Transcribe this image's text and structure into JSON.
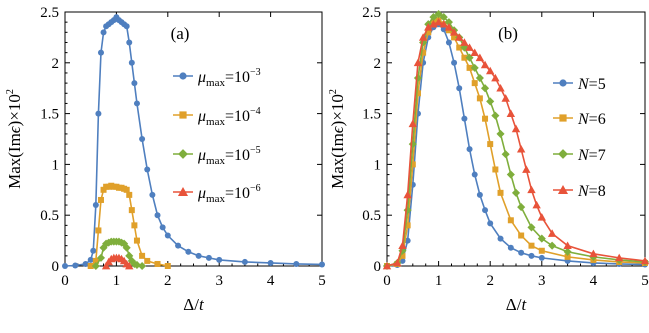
{
  "chart_data": [
    {
      "type": "scatter",
      "panel_label": "(a)",
      "xlabel": "Δ/t",
      "ylabel": "Max(Imϵ)×10²",
      "xlim": [
        0,
        5
      ],
      "ylim": [
        0,
        2.5
      ],
      "xticks": [
        "0",
        "1",
        "2",
        "3",
        "4",
        "5"
      ],
      "yticks": [
        "0",
        "0.5",
        "1",
        "1.5",
        "2",
        "2.5"
      ],
      "legend_position": "right",
      "series": [
        {
          "name": "μmax=10⁻³",
          "label_parts": {
            "base": "μ",
            "sub": "max",
            "mid": "=10",
            "sup": "−3"
          },
          "color": "#4f7fbf",
          "marker": "circle",
          "x": [
            0.0,
            0.2,
            0.4,
            0.5,
            0.55,
            0.6,
            0.65,
            0.7,
            0.75,
            0.8,
            0.85,
            0.9,
            0.95,
            1.0,
            1.05,
            1.1,
            1.15,
            1.2,
            1.25,
            1.3,
            1.35,
            1.4,
            1.5,
            1.6,
            1.7,
            1.8,
            1.9,
            2.0,
            2.2,
            2.4,
            2.6,
            2.8,
            3.0,
            3.5,
            4.0,
            4.5,
            5.0
          ],
          "y": [
            0.0,
            0.005,
            0.02,
            0.06,
            0.15,
            0.6,
            1.5,
            2.1,
            2.3,
            2.36,
            2.38,
            2.4,
            2.42,
            2.45,
            2.42,
            2.4,
            2.38,
            2.36,
            2.2,
            2.0,
            1.8,
            1.6,
            1.25,
            0.95,
            0.7,
            0.5,
            0.38,
            0.3,
            0.2,
            0.14,
            0.1,
            0.08,
            0.06,
            0.04,
            0.03,
            0.02,
            0.015
          ]
        },
        {
          "name": "μmax=10⁻⁴",
          "label_parts": {
            "base": "μ",
            "sub": "max",
            "mid": "=10",
            "sup": "−4"
          },
          "color": "#e0a02a",
          "marker": "square",
          "x": [
            0.5,
            0.6,
            0.65,
            0.7,
            0.75,
            0.8,
            0.85,
            0.9,
            0.95,
            1.0,
            1.05,
            1.1,
            1.15,
            1.2,
            1.25,
            1.3,
            1.35,
            1.4,
            1.5,
            1.6,
            1.8,
            2.0
          ],
          "y": [
            0.0,
            0.05,
            0.35,
            0.65,
            0.75,
            0.78,
            0.78,
            0.79,
            0.78,
            0.78,
            0.77,
            0.77,
            0.76,
            0.75,
            0.7,
            0.55,
            0.4,
            0.25,
            0.1,
            0.05,
            0.02,
            0.0
          ]
        },
        {
          "name": "μmax=10⁻⁵",
          "label_parts": {
            "base": "μ",
            "sub": "max",
            "mid": "=10",
            "sup": "−5"
          },
          "color": "#7fae3c",
          "marker": "diamond",
          "x": [
            0.6,
            0.7,
            0.75,
            0.8,
            0.85,
            0.9,
            0.95,
            1.0,
            1.05,
            1.1,
            1.15,
            1.2,
            1.25,
            1.3,
            1.35,
            1.4,
            1.5
          ],
          "y": [
            0.0,
            0.08,
            0.18,
            0.22,
            0.23,
            0.24,
            0.24,
            0.24,
            0.24,
            0.23,
            0.22,
            0.18,
            0.1,
            0.05,
            0.02,
            0.01,
            0.0
          ]
        },
        {
          "name": "μmax=10⁻⁶",
          "label_parts": {
            "base": "μ",
            "sub": "max",
            "mid": "=10",
            "sup": "−6"
          },
          "color": "#e8533a",
          "marker": "triangle",
          "x": [
            0.8,
            0.85,
            0.9,
            0.95,
            1.0,
            1.05,
            1.1,
            1.15,
            1.2,
            1.25
          ],
          "y": [
            0.0,
            0.04,
            0.07,
            0.08,
            0.08,
            0.08,
            0.07,
            0.05,
            0.02,
            0.0
          ]
        }
      ]
    },
    {
      "type": "scatter",
      "panel_label": "(b)",
      "xlabel": "Δ/t",
      "ylabel": "Max(Imϵ)×10²",
      "xlim": [
        0,
        5
      ],
      "ylim": [
        0,
        2.5
      ],
      "xticks": [
        "0",
        "1",
        "2",
        "3",
        "4",
        "5"
      ],
      "yticks": [
        "0",
        "0.5",
        "1",
        "1.5",
        "2",
        "2.5"
      ],
      "legend_position": "right",
      "series": [
        {
          "name": "N=5",
          "label_parts": {
            "base": "N",
            "mid": "=5"
          },
          "color": "#4f7fbf",
          "marker": "circle",
          "x": [
            0.0,
            0.2,
            0.3,
            0.4,
            0.5,
            0.6,
            0.7,
            0.8,
            0.9,
            1.0,
            1.1,
            1.2,
            1.3,
            1.4,
            1.5,
            1.6,
            1.7,
            1.8,
            1.9,
            2.0,
            2.2,
            2.4,
            2.6,
            2.8,
            3.0,
            3.5,
            4.0,
            4.5,
            5.0
          ],
          "y": [
            0.0,
            0.01,
            0.05,
            0.25,
            0.8,
            1.5,
            2.0,
            2.25,
            2.35,
            2.38,
            2.33,
            2.2,
            2.0,
            1.75,
            1.45,
            1.15,
            0.9,
            0.7,
            0.55,
            0.42,
            0.27,
            0.18,
            0.13,
            0.1,
            0.08,
            0.05,
            0.03,
            0.02,
            0.015
          ]
        },
        {
          "name": "N=6",
          "label_parts": {
            "base": "N",
            "mid": "=6"
          },
          "color": "#e0a02a",
          "marker": "square",
          "x": [
            0.0,
            0.2,
            0.3,
            0.4,
            0.5,
            0.6,
            0.7,
            0.8,
            0.9,
            1.0,
            1.1,
            1.2,
            1.3,
            1.4,
            1.5,
            1.6,
            1.7,
            1.8,
            1.9,
            2.0,
            2.1,
            2.2,
            2.4,
            2.6,
            2.8,
            3.0,
            3.5,
            4.0,
            4.5,
            5.0
          ],
          "y": [
            0.0,
            0.02,
            0.1,
            0.4,
            1.0,
            1.7,
            2.1,
            2.3,
            2.4,
            2.42,
            2.38,
            2.32,
            2.25,
            2.15,
            2.05,
            1.95,
            1.8,
            1.65,
            1.45,
            1.2,
            0.95,
            0.72,
            0.45,
            0.3,
            0.2,
            0.15,
            0.09,
            0.06,
            0.04,
            0.03
          ]
        },
        {
          "name": "N=7",
          "label_parts": {
            "base": "N",
            "mid": "=7"
          },
          "color": "#7fae3c",
          "marker": "diamond",
          "x": [
            0.0,
            0.2,
            0.3,
            0.4,
            0.5,
            0.6,
            0.7,
            0.8,
            0.9,
            1.0,
            1.1,
            1.2,
            1.3,
            1.4,
            1.5,
            1.6,
            1.7,
            1.8,
            1.9,
            2.0,
            2.1,
            2.2,
            2.3,
            2.4,
            2.5,
            2.6,
            2.8,
            3.0,
            3.2,
            3.5,
            4.0,
            4.5,
            5.0
          ],
          "y": [
            0.0,
            0.03,
            0.15,
            0.55,
            1.2,
            1.85,
            2.2,
            2.38,
            2.45,
            2.48,
            2.45,
            2.4,
            2.32,
            2.25,
            2.15,
            2.05,
            1.95,
            1.85,
            1.75,
            1.62,
            1.48,
            1.3,
            1.1,
            0.9,
            0.72,
            0.58,
            0.38,
            0.27,
            0.2,
            0.14,
            0.09,
            0.06,
            0.04
          ]
        },
        {
          "name": "N=8",
          "label_parts": {
            "base": "N",
            "mid": "=8"
          },
          "color": "#e8533a",
          "marker": "triangle",
          "x": [
            0.0,
            0.2,
            0.3,
            0.4,
            0.5,
            0.6,
            0.7,
            0.8,
            0.9,
            1.0,
            1.1,
            1.2,
            1.3,
            1.4,
            1.5,
            1.6,
            1.7,
            1.8,
            1.9,
            2.0,
            2.1,
            2.2,
            2.3,
            2.4,
            2.5,
            2.6,
            2.7,
            2.8,
            2.9,
            3.0,
            3.2,
            3.5,
            4.0,
            4.5,
            5.0
          ],
          "y": [
            0.0,
            0.03,
            0.2,
            0.7,
            1.4,
            2.0,
            2.25,
            2.35,
            2.38,
            2.4,
            2.38,
            2.35,
            2.3,
            2.25,
            2.2,
            2.15,
            2.1,
            2.05,
            1.98,
            1.92,
            1.85,
            1.75,
            1.65,
            1.5,
            1.35,
            1.15,
            0.95,
            0.75,
            0.6,
            0.48,
            0.32,
            0.2,
            0.12,
            0.08,
            0.05
          ]
        }
      ]
    }
  ]
}
